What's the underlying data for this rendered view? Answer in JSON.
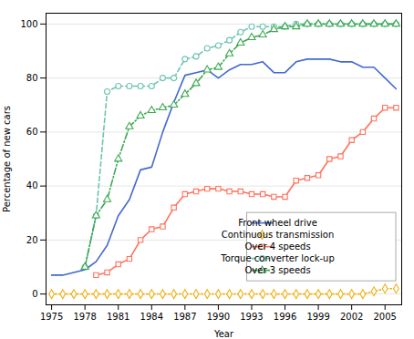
{
  "chart_data": {
    "type": "line",
    "xlabel": "Year",
    "ylabel": "Percentage of new cars",
    "x": [
      1975,
      1976,
      1977,
      1978,
      1979,
      1980,
      1981,
      1982,
      1983,
      1984,
      1985,
      1986,
      1987,
      1988,
      1989,
      1990,
      1991,
      1992,
      1993,
      1994,
      1995,
      1996,
      1997,
      1998,
      1999,
      2000,
      2001,
      2002,
      2003,
      2004,
      2005,
      2006
    ],
    "series": [
      {
        "name": "Front wheel drive",
        "marker": "none",
        "line_style": "solid",
        "values": [
          7,
          7,
          8,
          9,
          12,
          18,
          29,
          35,
          46,
          47,
          60,
          71,
          81,
          82,
          83,
          80,
          83,
          85,
          85,
          86,
          82,
          82,
          86,
          87,
          87,
          87,
          86,
          86,
          84,
          84,
          80,
          76
        ]
      },
      {
        "name": "Continuous transmission",
        "marker": "diamond",
        "line_style": "dotted",
        "values": [
          0,
          0,
          0,
          0,
          0,
          0,
          0,
          0,
          0,
          0,
          0,
          0,
          0,
          0,
          0,
          0,
          0,
          0,
          0,
          0,
          0,
          0,
          0,
          0,
          0,
          0,
          0,
          0,
          0,
          1,
          2,
          2
        ]
      },
      {
        "name": "Over 4 speeds",
        "marker": "square",
        "line_style": "solid",
        "values": [
          null,
          null,
          null,
          null,
          7,
          8,
          11,
          13,
          20,
          24,
          25,
          32,
          37,
          38,
          39,
          39,
          38,
          38,
          37,
          37,
          36,
          36,
          42,
          43,
          44,
          50,
          51,
          57,
          60,
          65,
          69,
          69
        ]
      },
      {
        "name": "Torque converter lock-up",
        "marker": "circle",
        "line_style": "dashed",
        "values": [
          null,
          null,
          null,
          10,
          29,
          75,
          77,
          77,
          77,
          77,
          80,
          80,
          87,
          88,
          91,
          92,
          94,
          97,
          99,
          99,
          99,
          99,
          100,
          100,
          100,
          100,
          100,
          100,
          100,
          100,
          100,
          100
        ]
      },
      {
        "name": "Over 3 speeds",
        "marker": "triangle",
        "line_style": "dashdot",
        "values": [
          null,
          null,
          null,
          10,
          29,
          35,
          50,
          62,
          66,
          68,
          69,
          70,
          74,
          78,
          83,
          84,
          89,
          93,
          95,
          96,
          98,
          99,
          99,
          100,
          100,
          100,
          100,
          100,
          100,
          100,
          100,
          100
        ]
      }
    ],
    "xlim": [
      1974.5,
      2006.5
    ],
    "ylim": [
      -4,
      104
    ],
    "xticks": [
      1975,
      1978,
      1981,
      1984,
      1987,
      1990,
      1993,
      1996,
      1999,
      2002,
      2005
    ],
    "yticks": [
      0,
      20,
      40,
      60,
      80,
      100
    ],
    "grid": true,
    "legend": "lower right"
  }
}
